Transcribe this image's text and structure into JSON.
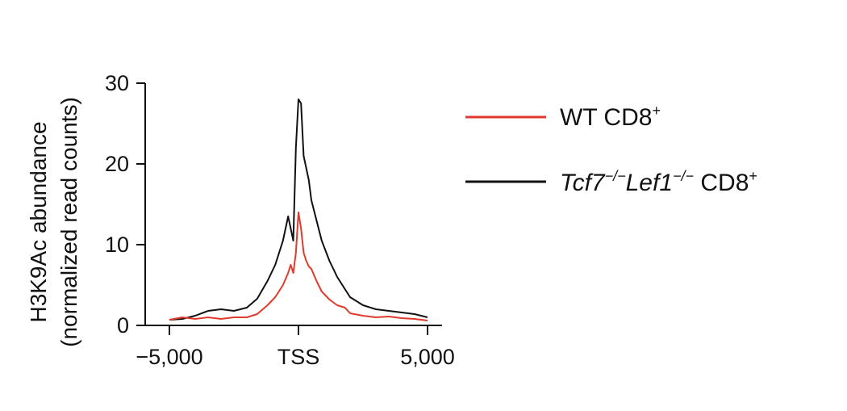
{
  "chart_data": {
    "type": "line",
    "ylabel_line1": "H3K9Ac abundance",
    "ylabel_line2": "(normalized read counts)",
    "xlabel": "",
    "xlim": [
      -5000,
      5000
    ],
    "ylim": [
      0,
      30
    ],
    "x_ticks": [
      {
        "value": -5000,
        "label": "−5,000"
      },
      {
        "value": 0,
        "label": "TSS"
      },
      {
        "value": 5000,
        "label": "5,000"
      }
    ],
    "y_ticks": [
      {
        "value": 0,
        "label": "0"
      },
      {
        "value": 10,
        "label": "10"
      },
      {
        "value": 20,
        "label": "20"
      },
      {
        "value": 30,
        "label": "30"
      }
    ],
    "grid": false,
    "legend_position": "right",
    "series": [
      {
        "name": "WT CD8+",
        "legend": {
          "plain": "WT CD8",
          "sup": "+"
        },
        "color": "#e03a2e",
        "x": [
          -5000,
          -4500,
          -4000,
          -3500,
          -3000,
          -2500,
          -2000,
          -1600,
          -1200,
          -900,
          -600,
          -400,
          -300,
          -200,
          -100,
          0,
          100,
          200,
          300,
          400,
          500,
          700,
          900,
          1200,
          1500,
          1800,
          2000,
          2500,
          3000,
          3500,
          4000,
          4500,
          5000
        ],
        "values": [
          0.7,
          1.0,
          0.8,
          1.0,
          0.8,
          1.0,
          1.0,
          1.4,
          2.5,
          3.5,
          5.0,
          6.5,
          7.5,
          6.5,
          9.0,
          14.0,
          12.0,
          9.0,
          8.0,
          7.3,
          7.0,
          5.5,
          4.2,
          3.2,
          2.5,
          2.2,
          1.5,
          1.2,
          1.0,
          1.1,
          0.9,
          0.8,
          0.6
        ]
      },
      {
        "name": "Tcf7−/−Lef1−/− CD8+",
        "legend": {
          "italic1": "Tcf7",
          "sup1": "−/−",
          "italic2": "Lef1",
          "sup2": "−/−",
          "plain": " CD8",
          "sup3": "+"
        },
        "color": "#111111",
        "x": [
          -5000,
          -4500,
          -4000,
          -3500,
          -3000,
          -2500,
          -2000,
          -1600,
          -1200,
          -900,
          -600,
          -400,
          -300,
          -200,
          -100,
          0,
          100,
          200,
          300,
          400,
          500,
          700,
          900,
          1200,
          1500,
          1800,
          2000,
          2500,
          3000,
          3500,
          4000,
          4500,
          5000
        ],
        "values": [
          0.7,
          0.8,
          1.2,
          1.8,
          2.0,
          1.8,
          2.2,
          3.3,
          5.5,
          7.5,
          10.5,
          13.5,
          12.0,
          10.5,
          22.0,
          28.0,
          27.5,
          21.0,
          19.5,
          18.0,
          15.5,
          13.0,
          10.5,
          8.0,
          6.0,
          4.5,
          3.5,
          2.5,
          2.0,
          1.8,
          1.6,
          1.4,
          1.0
        ]
      }
    ]
  }
}
